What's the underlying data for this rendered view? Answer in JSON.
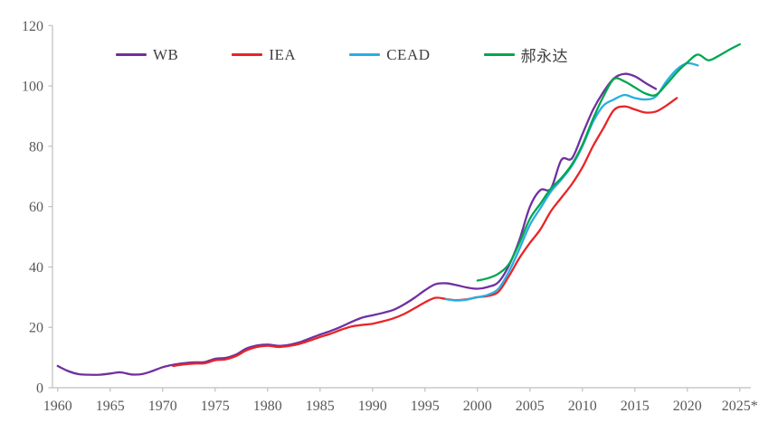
{
  "chart_data": {
    "type": "line",
    "title": "",
    "xlabel": "",
    "ylabel": "",
    "grid": false,
    "legend_position": "top",
    "axis_color": "#BFBFBF",
    "label_color": "#595959",
    "legend_text_color": "#404040",
    "x_axis": {
      "tick_labels": [
        "1960",
        "1965",
        "1970",
        "1975",
        "1980",
        "1985",
        "1990",
        "1995",
        "2000",
        "2005",
        "2010",
        "2015",
        "2020",
        "2025*"
      ],
      "tick_years": [
        1960,
        1965,
        1970,
        1975,
        1980,
        1985,
        1990,
        1995,
        2000,
        2005,
        2010,
        2015,
        2020,
        2025
      ],
      "min_year": 1960,
      "max_year": 2026
    },
    "y_axis": {
      "ticks": [
        0,
        20,
        40,
        60,
        80,
        100,
        120
      ],
      "min": 0,
      "max": 120
    },
    "series": [
      {
        "name": "WB",
        "color": "#7030A0",
        "start_year": 1960,
        "values": [
          7.2,
          5.5,
          4.5,
          4.3,
          4.3,
          4.7,
          5.1,
          4.4,
          4.5,
          5.5,
          6.8,
          7.6,
          8.1,
          8.4,
          8.5,
          9.6,
          9.9,
          11,
          13,
          14,
          14.3,
          13.9,
          14.2,
          15,
          16.3,
          17.6,
          18.8,
          20.2,
          21.8,
          23.2,
          24,
          24.8,
          25.8,
          27.6,
          29.8,
          32.3,
          34.3,
          34.6,
          34,
          33.2,
          32.8,
          33.4,
          35,
          40.5,
          49,
          60,
          65.5,
          66,
          75.5,
          76,
          84,
          92,
          98,
          102.5,
          104,
          103.2,
          101,
          99
        ]
      },
      {
        "name": "IEA",
        "color": "#E92427",
        "start_year": 1971,
        "values": [
          7.2,
          7.7,
          8,
          8.1,
          9.1,
          9.4,
          10.5,
          12.4,
          13.5,
          13.9,
          13.5,
          13.8,
          14.5,
          15.6,
          16.8,
          17.9,
          19.2,
          20.3,
          20.8,
          21.2,
          22,
          23,
          24.4,
          26.3,
          28.3,
          29.8,
          29.4,
          29,
          29.3,
          30,
          30.4,
          31.8,
          37,
          43,
          48,
          52.5,
          58.5,
          63,
          67.5,
          73,
          80,
          86,
          92,
          93.2,
          92.2,
          91.2,
          91.5,
          93.5,
          96
        ]
      },
      {
        "name": "CEAD",
        "color": "#27AEE3",
        "start_year": 1997,
        "values": [
          29.3,
          28.9,
          29.2,
          30,
          30.8,
          32.8,
          38.5,
          46,
          54,
          59.5,
          65,
          69,
          73.5,
          80,
          88,
          93.5,
          95.5,
          97,
          96,
          95.5,
          96.5,
          101.5,
          105.5,
          107.5,
          106.8
        ]
      },
      {
        "name": "郝永达",
        "color": "#00A651",
        "start_year": 2000,
        "values": [
          35.5,
          36.3,
          37.8,
          41,
          48,
          56,
          61,
          66,
          69.5,
          74,
          80.5,
          89,
          96.5,
          102.3,
          101.5,
          99.5,
          97.5,
          97,
          100.5,
          104.5,
          107.8,
          110.4,
          108.5,
          110,
          112,
          113.8
        ]
      }
    ]
  }
}
